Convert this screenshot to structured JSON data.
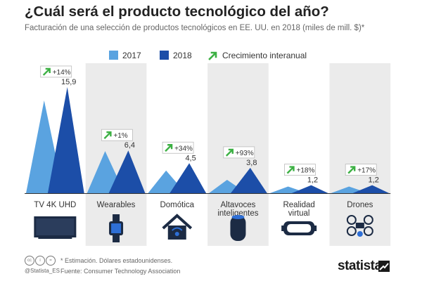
{
  "title": "¿Cuál será el producto tecnológico del año?",
  "subtitle": "Facturación de una selección de productos tecnológicos en EE. UU. en 2018 (miles de mill. $)*",
  "legend": {
    "s2017": "2017",
    "s2018": "2018",
    "growth": "Crecimiento interanual"
  },
  "colors": {
    "c2017": "#5aa3e0",
    "c2018": "#1c4ea8",
    "growth_arrow": "#3cb043",
    "panel_bg": "#ebebeb",
    "text": "#333333"
  },
  "chart_data": {
    "type": "area",
    "title": "¿Cuál será el producto tecnológico del año?",
    "subtitle": "Facturación de una selección de productos tecnológicos en EE. UU. en 2018 (miles de mill. $)*",
    "categories": [
      "TV 4K UHD",
      "Wearables",
      "Domótica",
      "Altavoces inteligentes",
      "Realidad virtual",
      "Drones"
    ],
    "series": [
      {
        "name": "2017",
        "values": [
          13.9,
          6.3,
          3.4,
          2.0,
          1.0,
          1.0
        ]
      },
      {
        "name": "2018",
        "values": [
          15.9,
          6.4,
          4.5,
          3.8,
          1.2,
          1.2
        ]
      }
    ],
    "labels_2018": [
      "15,9",
      "6,4",
      "4,5",
      "3,8",
      "1,2",
      "1,2"
    ],
    "growth_labels": [
      "+14%",
      "+1%",
      "+34%",
      "+93%",
      "+18%",
      "+17%"
    ],
    "ylim": [
      0,
      16
    ],
    "grid": false,
    "legend_position": "top"
  },
  "icons": [
    "tv-icon",
    "smartwatch-icon",
    "smart-home-icon",
    "smart-speaker-icon",
    "vr-headset-icon",
    "drone-icon"
  ],
  "footer": {
    "footnote": "* Estimación. Dólares estadounidenses.",
    "source": "Fuente: Consumer Technology Association",
    "handle": "@Statista_ES",
    "logo": "statista"
  }
}
